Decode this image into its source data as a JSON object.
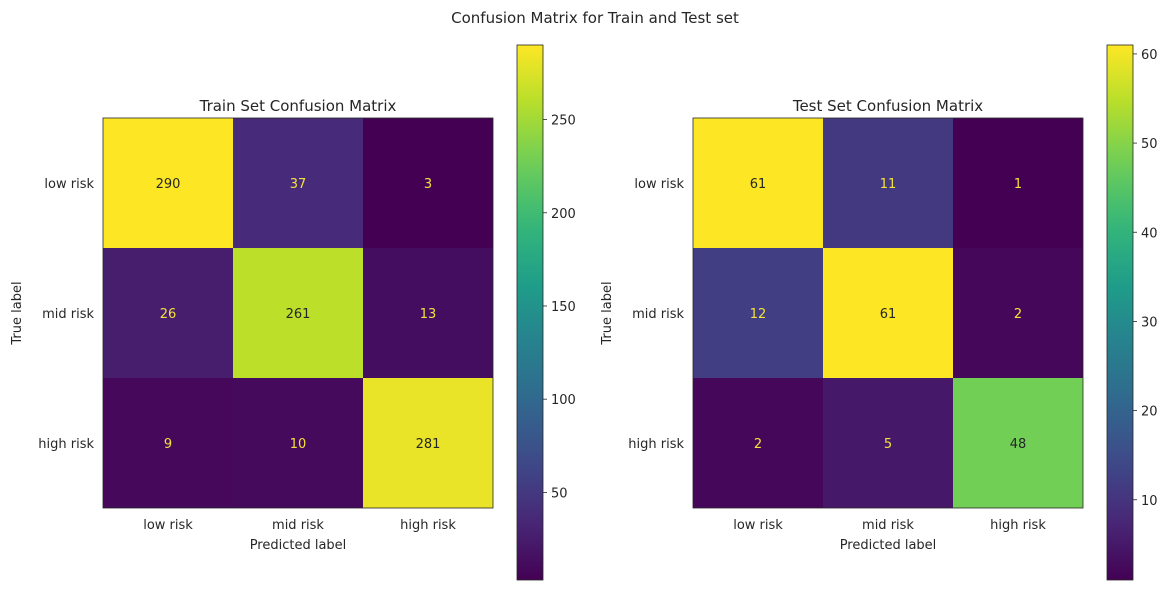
{
  "figure": {
    "suptitle": "Confusion Matrix for Train and Test set"
  },
  "chart_data": [
    {
      "type": "heatmap",
      "title": "Train Set Confusion Matrix",
      "xlabel": "Predicted label",
      "ylabel": "True label",
      "x_categories": [
        "low risk",
        "mid risk",
        "high risk"
      ],
      "y_categories": [
        "low risk",
        "mid risk",
        "high risk"
      ],
      "values": [
        [
          290,
          37,
          3
        ],
        [
          26,
          261,
          13
        ],
        [
          9,
          10,
          281
        ]
      ],
      "colorbar": {
        "ticks": [
          "50",
          "100",
          "150",
          "200",
          "250"
        ],
        "range": [
          3,
          290
        ]
      },
      "colormap": "viridis",
      "grid": false
    },
    {
      "type": "heatmap",
      "title": "Test Set Confusion Matrix",
      "xlabel": "Predicted label",
      "ylabel": "True label",
      "x_categories": [
        "low risk",
        "mid risk",
        "high risk"
      ],
      "y_categories": [
        "low risk",
        "mid risk",
        "high risk"
      ],
      "values": [
        [
          61,
          11,
          1
        ],
        [
          12,
          61,
          2
        ],
        [
          2,
          5,
          48
        ]
      ],
      "colorbar": {
        "ticks": [
          "10",
          "20",
          "30",
          "40",
          "50",
          "60"
        ],
        "range": [
          1,
          61
        ]
      },
      "colormap": "viridis",
      "grid": false
    }
  ]
}
